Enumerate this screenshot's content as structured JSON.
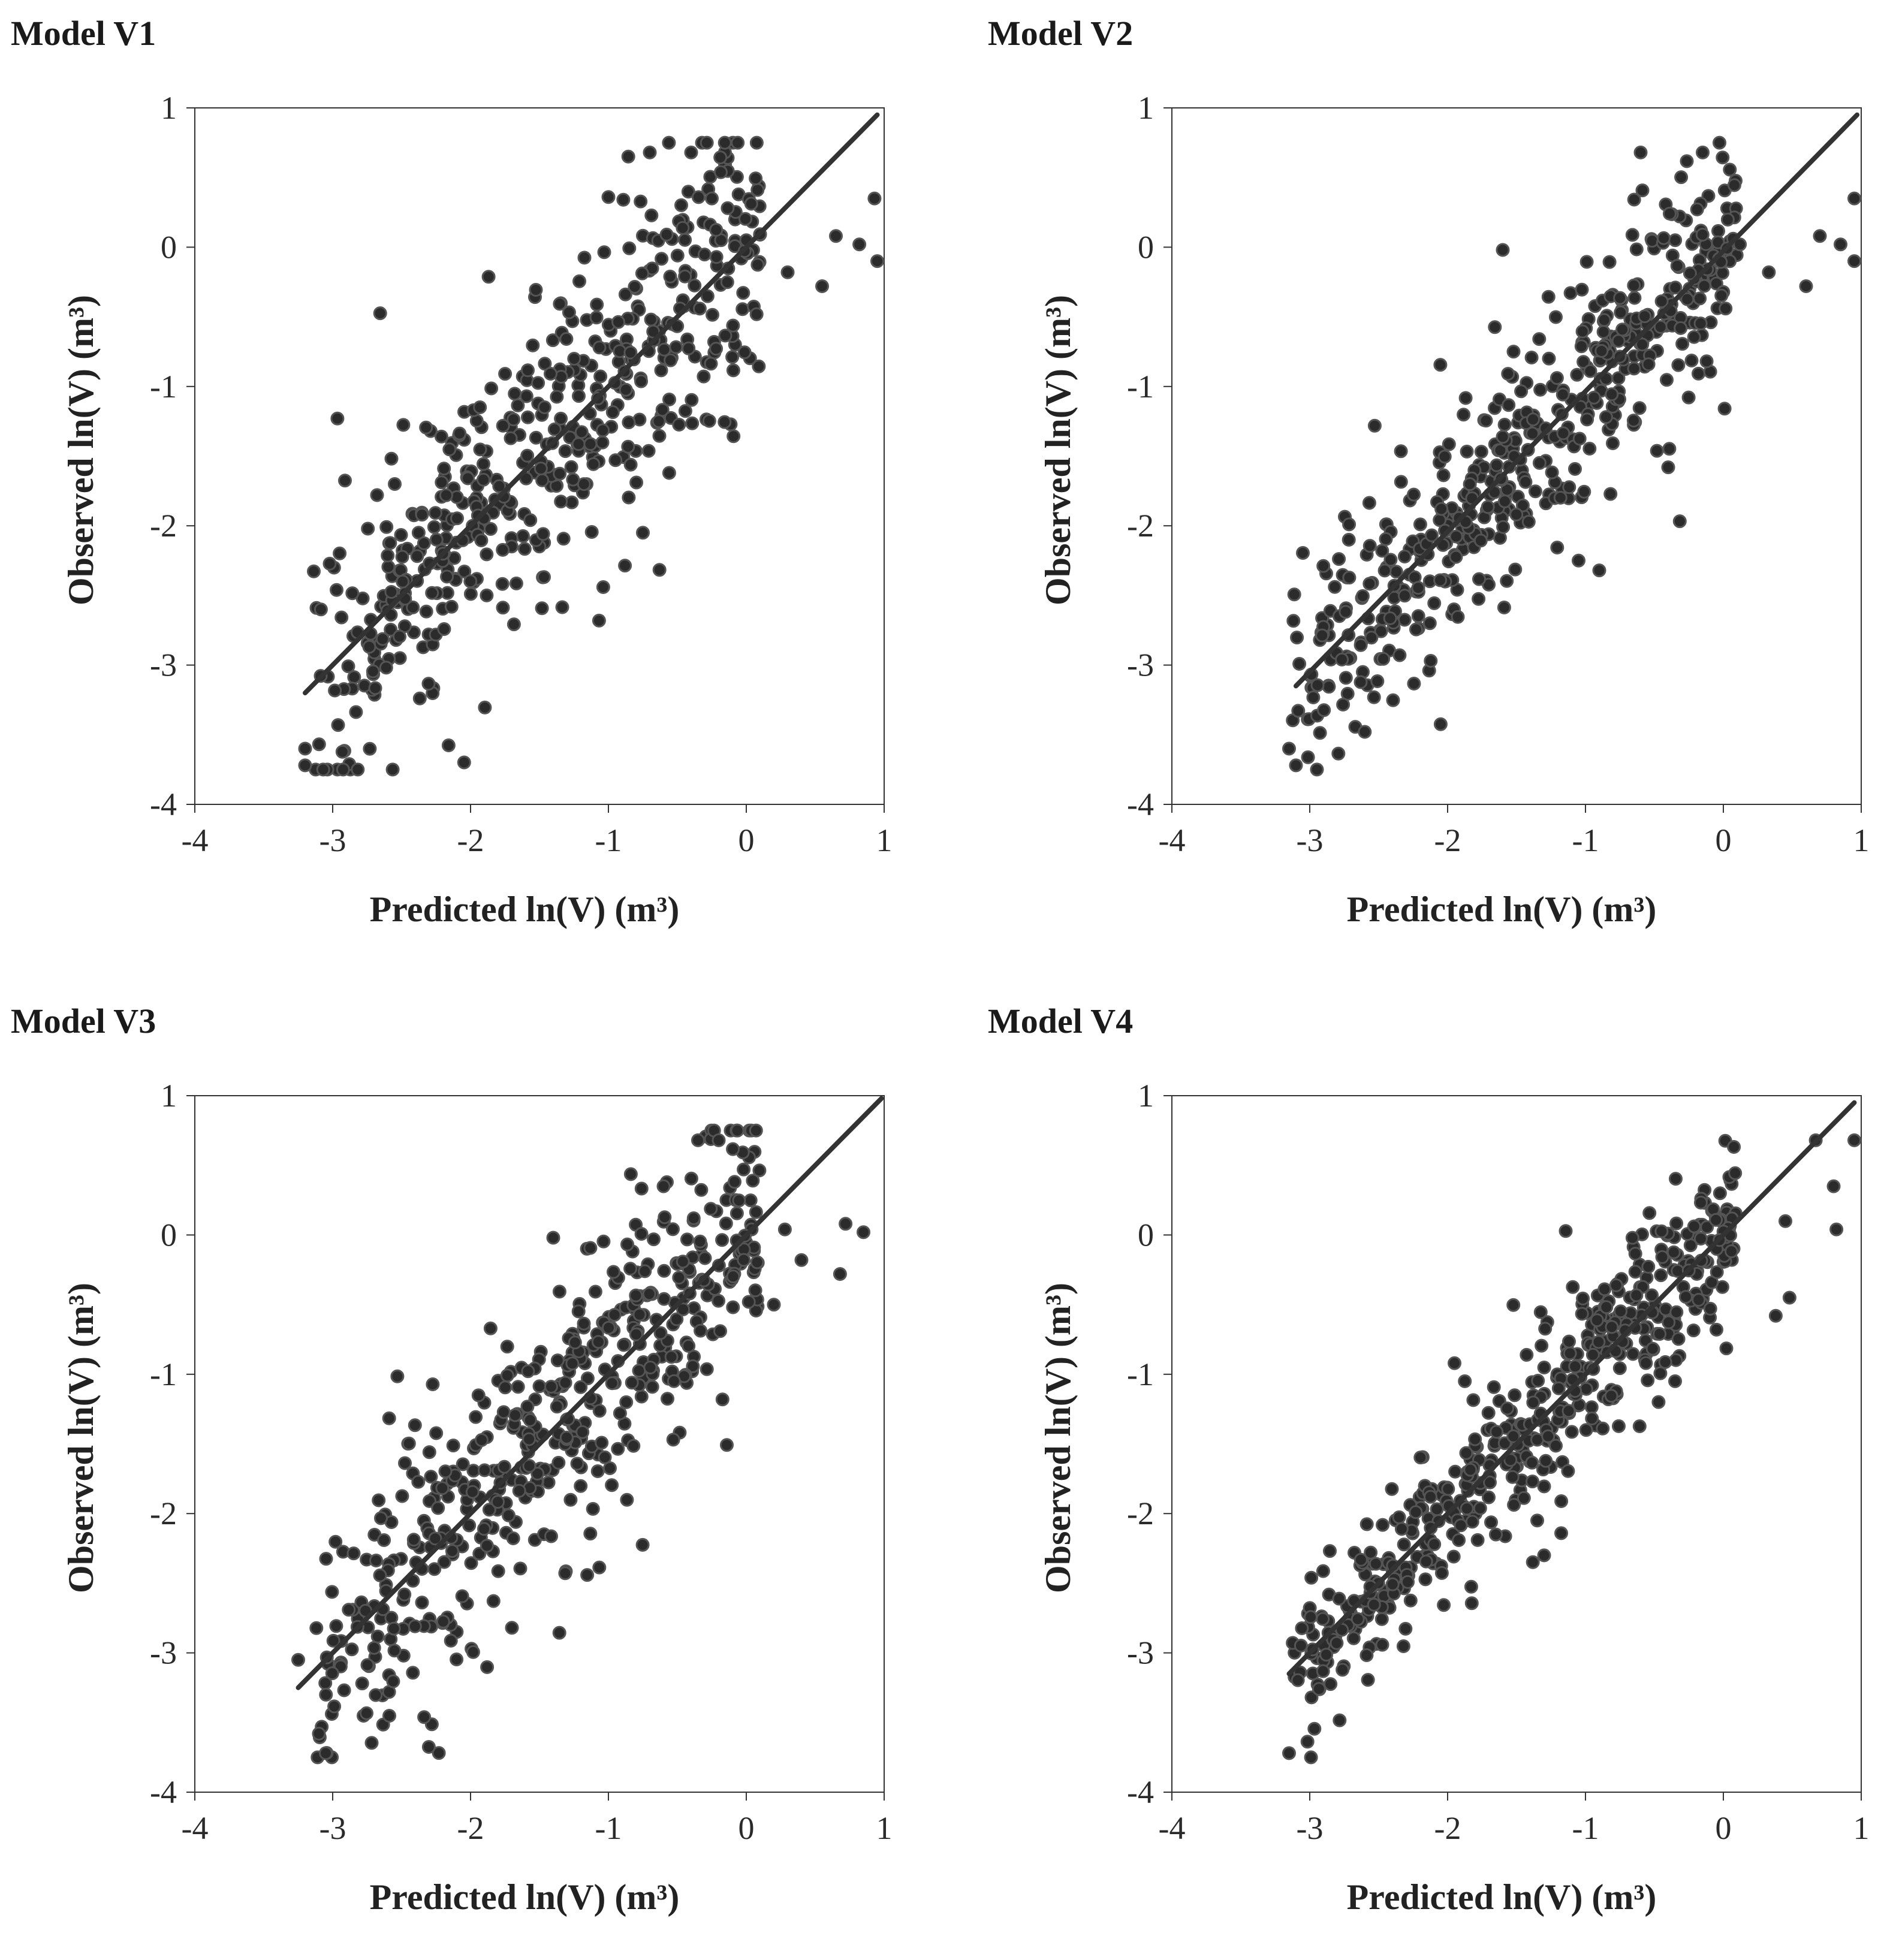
{
  "chart_data": [
    {
      "type": "scatter",
      "title": "Model V1",
      "xlabel": "Predicted ln(V)",
      "ylabel": "Observed ln(V)",
      "unit": "(m³)",
      "xlim": [
        -4,
        1
      ],
      "ylim": [
        -4,
        1
      ],
      "xticks": [
        "-4",
        "-3",
        "-2",
        "-1",
        "0",
        "1"
      ],
      "yticks": [
        "1",
        "0",
        "-1",
        "-2",
        "-3",
        "-4"
      ],
      "spread": 0.55,
      "fit_line": {
        "x": [
          -3.2,
          0.95
        ],
        "y": [
          -3.2,
          0.95
        ]
      },
      "outliers": {
        "x": [
          -3.2,
          -3.2,
          -0.7,
          -0.4,
          0.65,
          0.82,
          0.93,
          0.95,
          0.55,
          0.3,
          -0.25,
          -1.0,
          -0.75,
          0.0,
          -2.2,
          -2.55
        ],
        "y": [
          -3.6,
          -3.72,
          0.68,
          0.68,
          0.08,
          0.02,
          0.35,
          -0.1,
          -0.28,
          -0.18,
          0.35,
          0.36,
          -2.05,
          0.05,
          -2.2,
          -1.7
        ]
      }
    },
    {
      "type": "scatter",
      "title": "Model V2",
      "xlabel": "Predicted ln(V)",
      "ylabel": "Observed ln(V)",
      "unit": "(m³)",
      "xlim": [
        -4,
        1
      ],
      "ylim": [
        -4,
        1
      ],
      "xticks": [
        "-4",
        "-3",
        "-2",
        "-1",
        "0",
        "1"
      ],
      "yticks": [
        "1",
        "0",
        "-1",
        "-2",
        "-3",
        "-4"
      ],
      "spread": 0.42,
      "fit_line": {
        "x": [
          -3.1,
          0.97
        ],
        "y": [
          -3.15,
          0.95
        ]
      },
      "outliers": {
        "x": [
          -3.15,
          -3.1,
          -0.6,
          -0.15,
          0.95,
          0.95,
          0.85,
          0.7,
          0.6,
          0.33,
          0.12,
          -1.6,
          -0.4,
          -0.9,
          -1.05
        ],
        "y": [
          -3.6,
          -3.72,
          0.68,
          0.68,
          0.35,
          -0.1,
          0.02,
          0.08,
          -0.28,
          -0.18,
          0.02,
          -0.02,
          -1.58,
          -2.32,
          -2.25
        ]
      }
    },
    {
      "type": "scatter",
      "title": "Model V3",
      "xlabel": "Predicted ln(V)",
      "ylabel": "Observed ln(V)",
      "unit": "(m³)",
      "xlim": [
        -4,
        1
      ],
      "ylim": [
        -4,
        1
      ],
      "xticks": [
        "-4",
        "-3",
        "-2",
        "-1",
        "0",
        "1"
      ],
      "yticks": [
        "1",
        "0",
        "-1",
        "-2",
        "-3",
        "-4"
      ],
      "spread": 0.5,
      "fit_line": {
        "x": [
          -3.25,
          0.98
        ],
        "y": [
          -3.25,
          0.98
        ]
      },
      "outliers": {
        "x": [
          -3.25,
          -3.1,
          -3.05,
          -0.35,
          -0.2,
          0.85,
          0.72,
          0.68,
          0.4,
          0.28,
          0.2,
          -0.6,
          -1.7,
          -1.4
        ],
        "y": [
          -3.05,
          -3.58,
          -3.72,
          0.68,
          0.68,
          0.02,
          0.08,
          -0.28,
          -0.18,
          0.04,
          -0.5,
          0.35,
          -2.82,
          -0.02
        ]
      }
    },
    {
      "type": "scatter",
      "title": "Model V4",
      "xlabel": "Predicted ln(V)",
      "ylabel": "Observed ln(V)",
      "unit": "(m³)",
      "xlim": [
        -4,
        1
      ],
      "ylim": [
        -4,
        1
      ],
      "xticks": [
        "-4",
        "-3",
        "-2",
        "-1",
        "0",
        "1"
      ],
      "yticks": [
        "1",
        "0",
        "-1",
        "-2",
        "-3",
        "-4"
      ],
      "spread": 0.28,
      "fit_line": {
        "x": [
          -3.15,
          0.95
        ],
        "y": [
          -3.15,
          0.95
        ]
      },
      "outliers": {
        "x": [
          -3.15,
          0.95,
          0.67,
          0.8,
          0.82,
          0.48,
          0.38,
          0.45,
          -0.05,
          -0.35,
          -1.3,
          -1.65,
          -1.35,
          -1.95
        ],
        "y": [
          -3.72,
          0.68,
          0.68,
          0.35,
          0.04,
          -0.45,
          -0.58,
          0.1,
          -0.68,
          -1.05,
          -2.3,
          -2.15,
          -2.05,
          -0.92
        ]
      }
    }
  ]
}
